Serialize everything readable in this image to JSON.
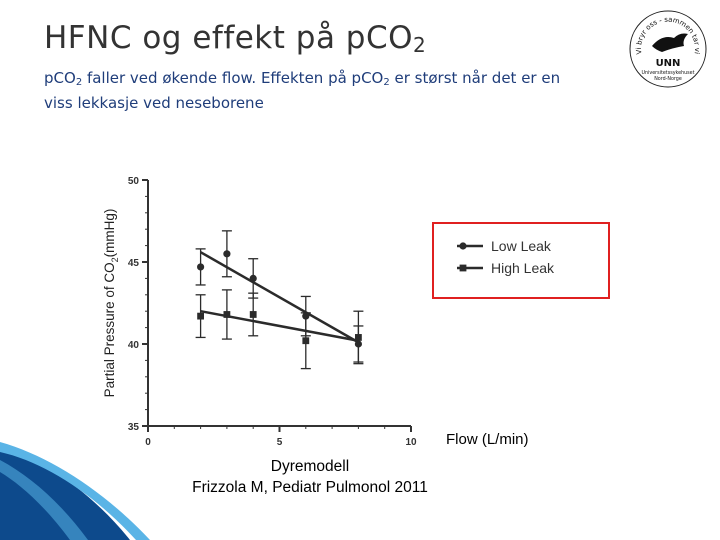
{
  "slide": {
    "title_main": "HFNC og effekt på pCO",
    "title_sub": "2",
    "subtitle_part1": "pCO",
    "subtitle_sub1": "2",
    "subtitle_part2": " faller ved økende flow. Effekten på pCO",
    "subtitle_sub2": "2",
    "subtitle_part3": " er størst når det er en viss lekkasje ved neseborene"
  },
  "logo": {
    "arc_text": "Vi bryr oss - sammen tar vi ansvar",
    "name": "UNN",
    "org_line1": "Universitetssykehuset",
    "org_line2": "Nord-Norge"
  },
  "chart_data": {
    "type": "scatter",
    "ylabel_pre": "Partial Pressure of CO",
    "ylabel_sub": "2",
    "ylabel_post": "(mmHg)",
    "xlabel": "Flow (L/min)",
    "xlim": [
      0,
      10
    ],
    "ylim": [
      35,
      50
    ],
    "xticks": [
      0,
      5,
      10
    ],
    "yticks": [
      35,
      40,
      45,
      50
    ],
    "grid": false,
    "legend_position": "right",
    "legend_border_color": "#e02020",
    "series": [
      {
        "name": "Low Leak",
        "marker": "circle",
        "x": [
          2,
          3,
          4,
          6,
          8
        ],
        "y": [
          44.7,
          45.5,
          44.0,
          41.7,
          40.0
        ],
        "err": [
          1.1,
          1.4,
          1.2,
          1.2,
          1.1
        ],
        "fit": {
          "x": [
            2,
            8
          ],
          "y": [
            45.6,
            40.1
          ]
        }
      },
      {
        "name": "High Leak",
        "marker": "square",
        "x": [
          2,
          3,
          4,
          6,
          8
        ],
        "y": [
          41.7,
          41.8,
          41.8,
          40.2,
          40.4
        ],
        "err": [
          1.3,
          1.5,
          1.3,
          1.7,
          1.6
        ],
        "fit": {
          "x": [
            2,
            8
          ],
          "y": [
            42.0,
            40.2
          ]
        }
      }
    ]
  },
  "caption": {
    "line1": "Dyremodell",
    "line2": "Frizzola M, Pediatr Pulmonol 2011"
  },
  "theme": {
    "title_color": "#333333",
    "subtitle_color": "#1f3d7a",
    "swoosh_dark": "#0d4a8c",
    "swoosh_light": "#5ab4e6"
  }
}
